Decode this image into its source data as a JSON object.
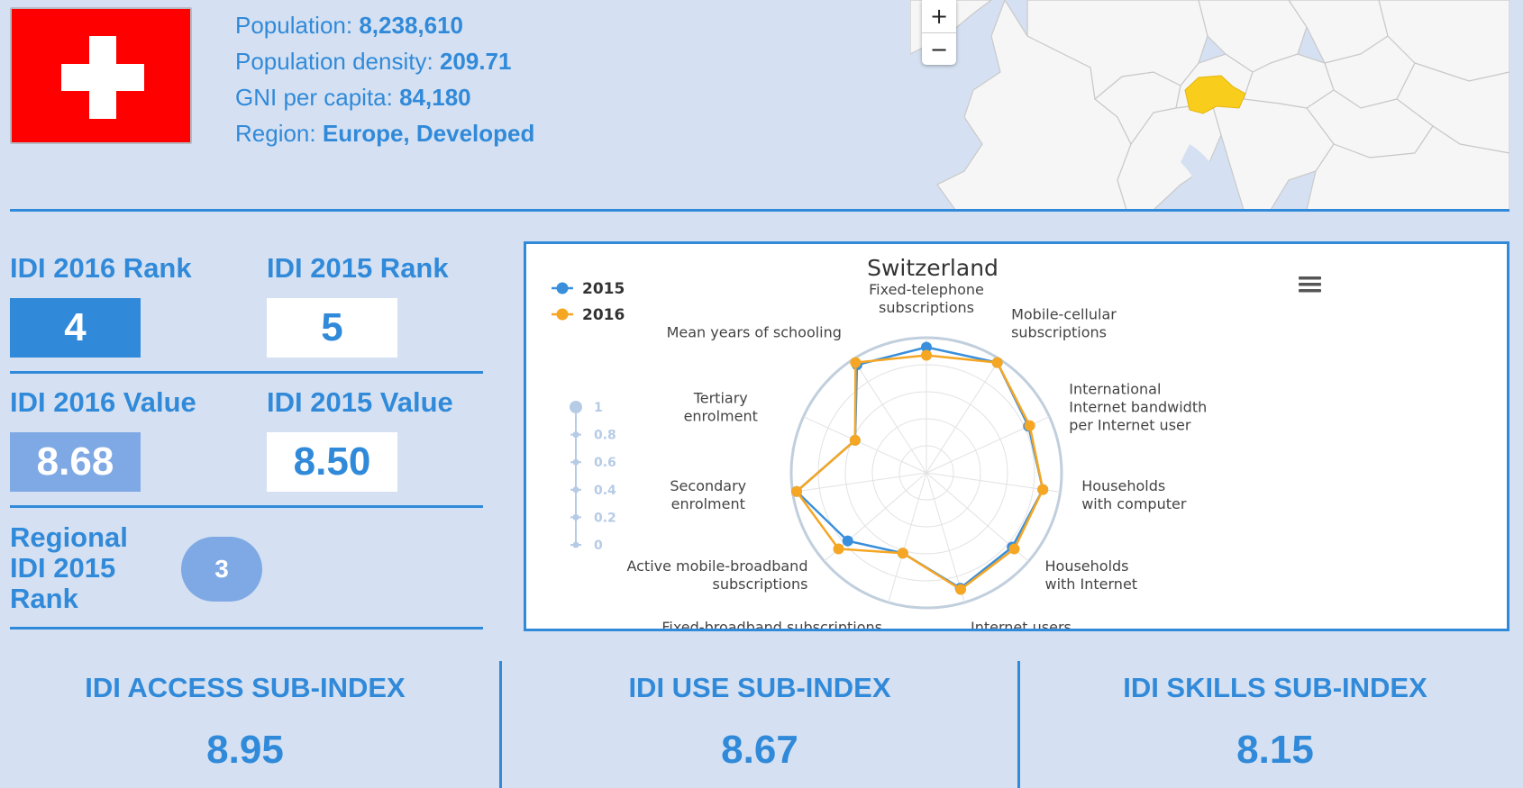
{
  "country": {
    "population_label": "Population:",
    "population": "8,238,610",
    "density_label": "Population density:",
    "density": "209.71",
    "gni_label": "GNI per capita:",
    "gni": "84,180",
    "region_label": "Region:",
    "region": "Europe, Developed"
  },
  "map": {
    "zoom_in": "+",
    "zoom_out": "−",
    "highlight_color": "#f9cd1c"
  },
  "ranks": {
    "idi2016_rank_label": "IDI 2016 Rank",
    "idi2016_rank": "4",
    "idi2015_rank_label": "IDI 2015 Rank",
    "idi2015_rank": "5",
    "idi2016_value_label": "IDI 2016 Value",
    "idi2016_value": "8.68",
    "idi2015_value_label": "IDI 2015 Value",
    "idi2015_value": "8.50",
    "regional_label_line1": "Regional",
    "regional_label_line2": "IDI 2015",
    "regional_label_line3": "Rank",
    "regional_rank": "3"
  },
  "colors": {
    "accent": "#318ad9",
    "series_2015": "#3a8fdc",
    "series_2016": "#f5a623",
    "background": "#d5e1f2"
  },
  "chart_data": {
    "type": "radar",
    "title": "Switzerland",
    "menu_icon": "hamburger-menu-icon",
    "legend_position": "top-left",
    "radial_ticks": [
      "1",
      "0.8",
      "0.6",
      "0.4",
      "0.2",
      "0"
    ],
    "radial_range": [
      0,
      1
    ],
    "categories": [
      [
        "Fixed-telephone",
        "subscriptions"
      ],
      [
        "Mobile-cellular",
        "subscriptions"
      ],
      [
        "International",
        "Internet bandwidth",
        "per Internet user"
      ],
      [
        "Households",
        "with computer"
      ],
      [
        "Households",
        "with Internet"
      ],
      [
        "Internet users"
      ],
      [
        "Fixed-broadband subscriptions"
      ],
      [
        "Active mobile-broadband",
        "subscriptions"
      ],
      [
        "Secondary",
        "enrolment"
      ],
      [
        "Tertiary",
        "enrolment"
      ],
      [
        "Mean years of schooling"
      ]
    ],
    "series": [
      {
        "name": "2015",
        "values": [
          0.93,
          0.97,
          0.83,
          0.87,
          0.84,
          0.89,
          0.62,
          0.77,
          0.97,
          0.58,
          0.95
        ]
      },
      {
        "name": "2016",
        "values": [
          0.87,
          0.97,
          0.84,
          0.87,
          0.86,
          0.9,
          0.62,
          0.86,
          0.97,
          0.58,
          0.97
        ]
      }
    ]
  },
  "subindex": {
    "access_label": "IDI ACCESS SUB-INDEX",
    "access_value": "8.95",
    "use_label": "IDI USE SUB-INDEX",
    "use_value": "8.67",
    "skills_label": "IDI SKILLS SUB-INDEX",
    "skills_value": "8.15"
  }
}
